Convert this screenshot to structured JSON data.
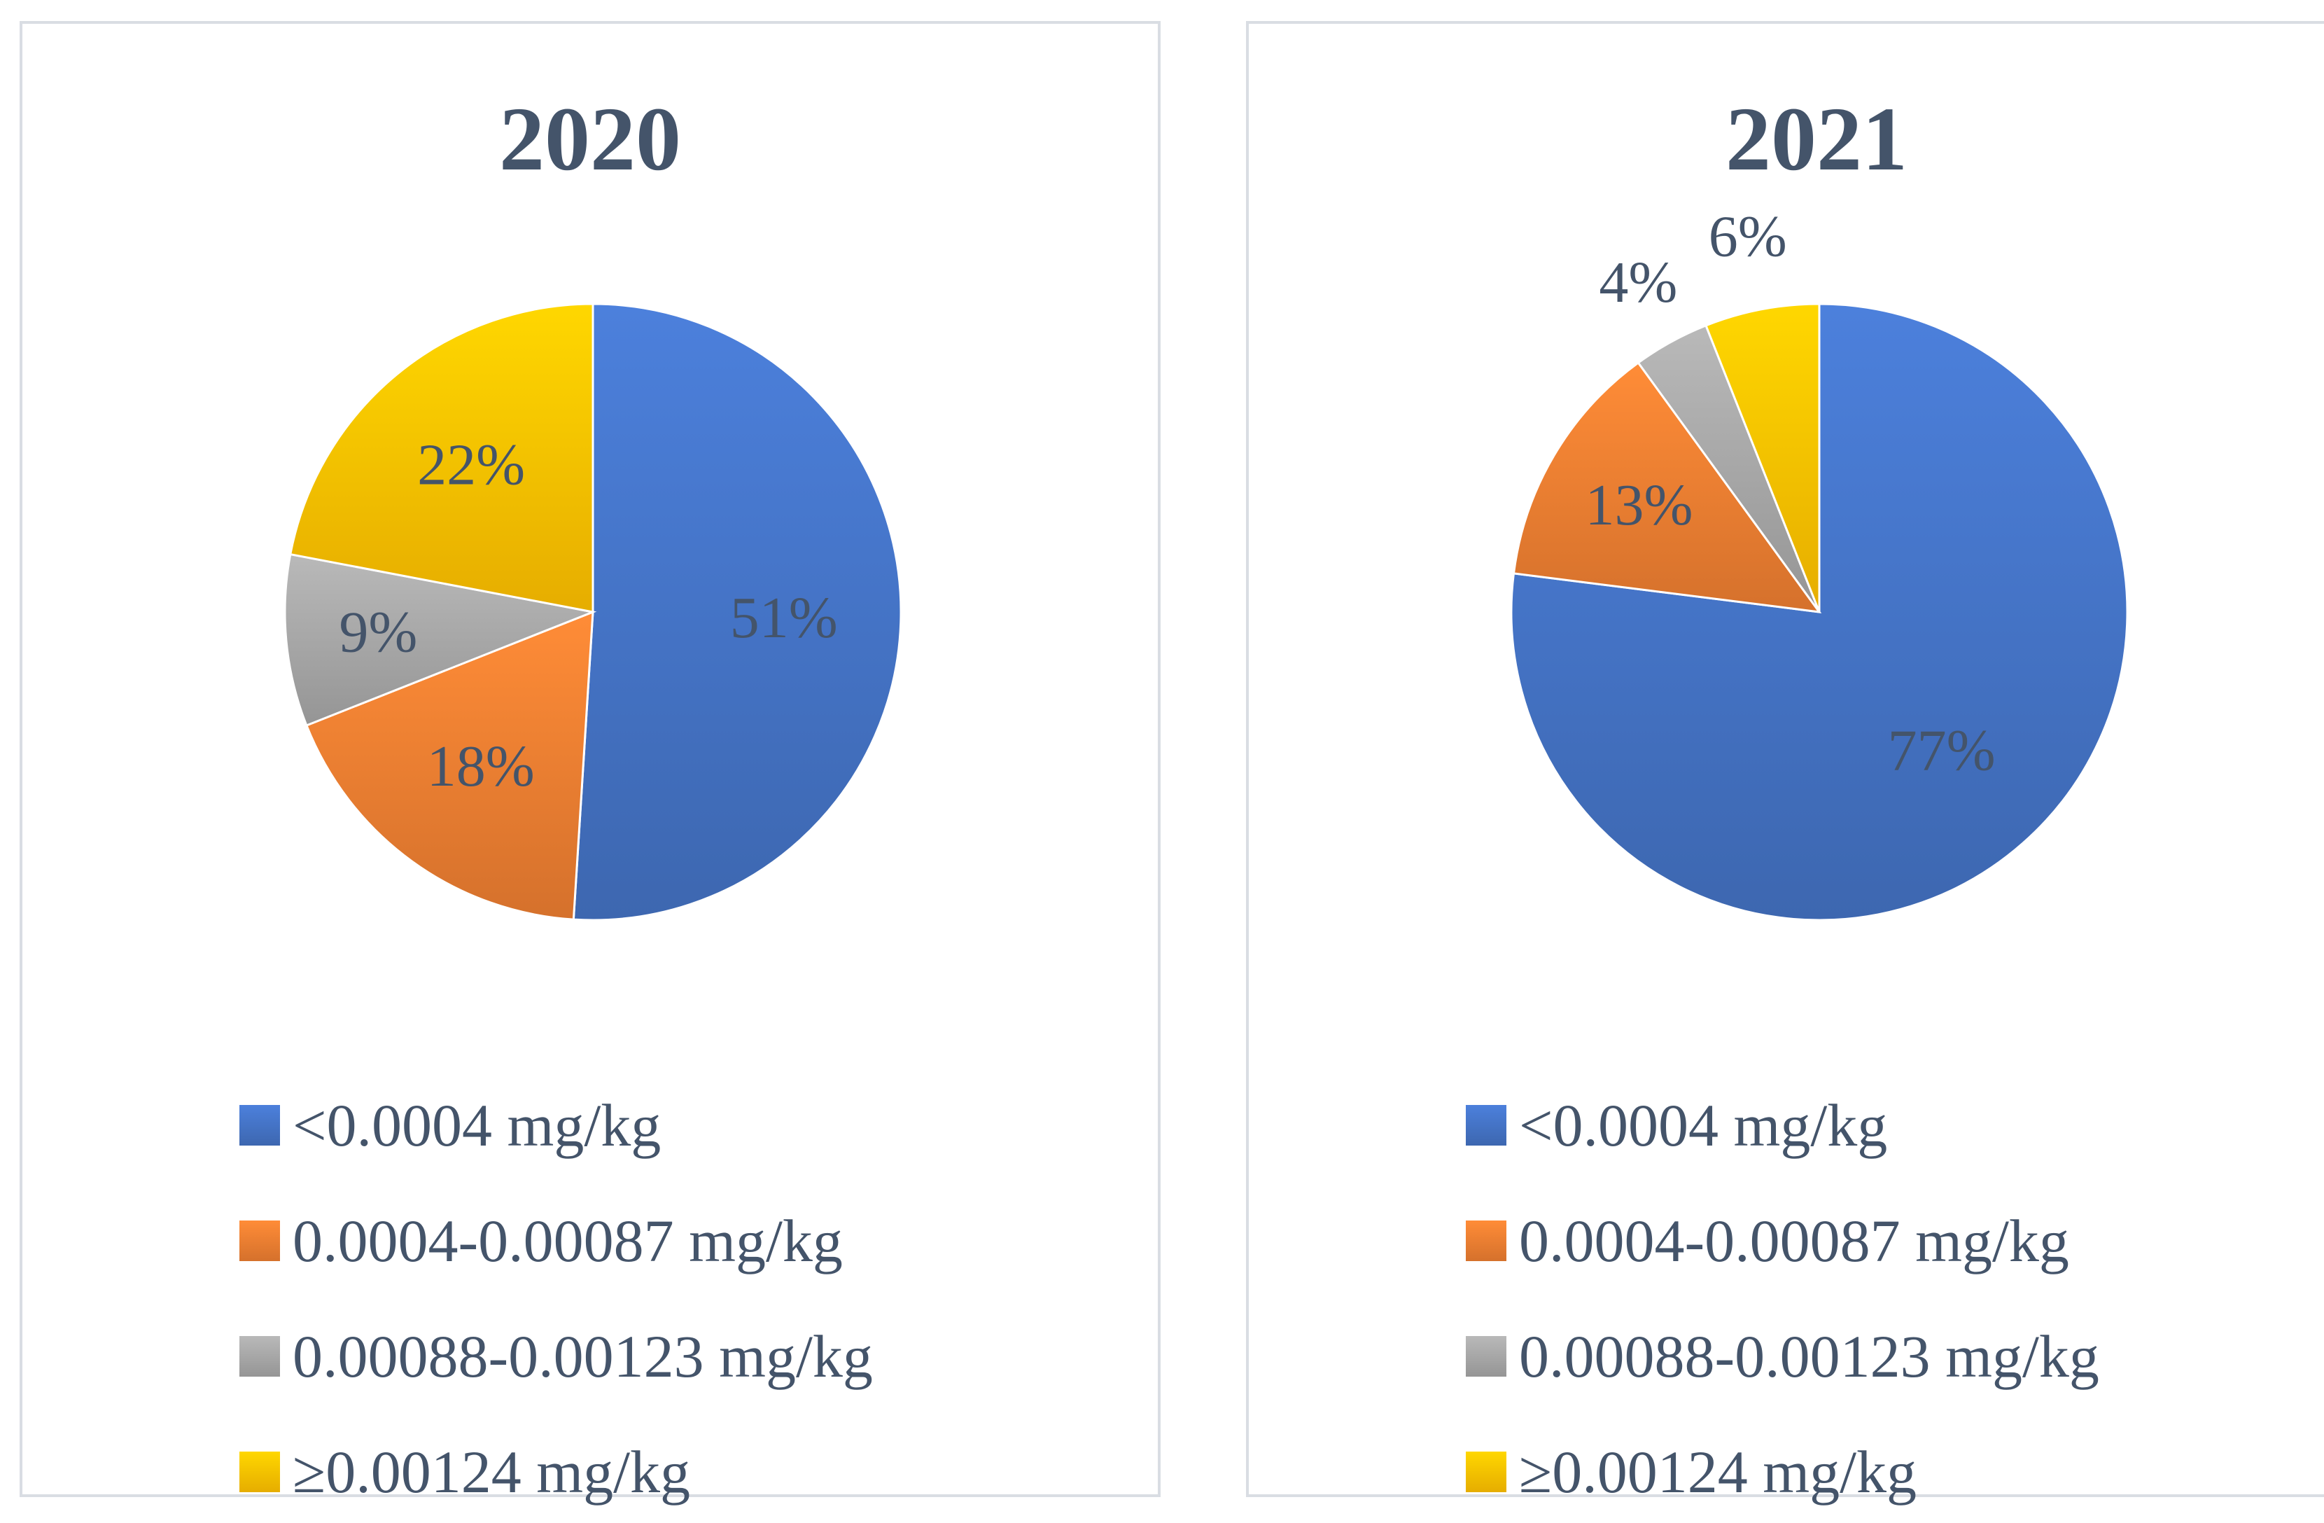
{
  "chart_data": [
    {
      "type": "pie",
      "title": "2020",
      "categories": [
        "<0.0004 mg/kg",
        "0.0004-0.00087 mg/kg",
        "0.00088-0.00123 mg/kg",
        "≥0.00124 mg/kg"
      ],
      "values": [
        51,
        18,
        9,
        22
      ],
      "labels": [
        "51%",
        "18%",
        "9%",
        "22%"
      ],
      "colors": [
        "#4472c4",
        "#ed7d31",
        "#a5a5a5",
        "#ffc000"
      ],
      "legend": "bottom"
    },
    {
      "type": "pie",
      "title": "2021",
      "categories": [
        "<0.0004 mg/kg",
        "0.0004-0.00087 mg/kg",
        "0.00088-0.00123 mg/kg",
        "≥0.00124 mg/kg"
      ],
      "values": [
        77,
        13,
        4,
        6
      ],
      "labels": [
        "77%",
        "13%",
        "4%",
        "6%"
      ],
      "colors": [
        "#4472c4",
        "#ed7d31",
        "#a5a5a5",
        "#ffc000"
      ],
      "legend": "bottom"
    }
  ]
}
